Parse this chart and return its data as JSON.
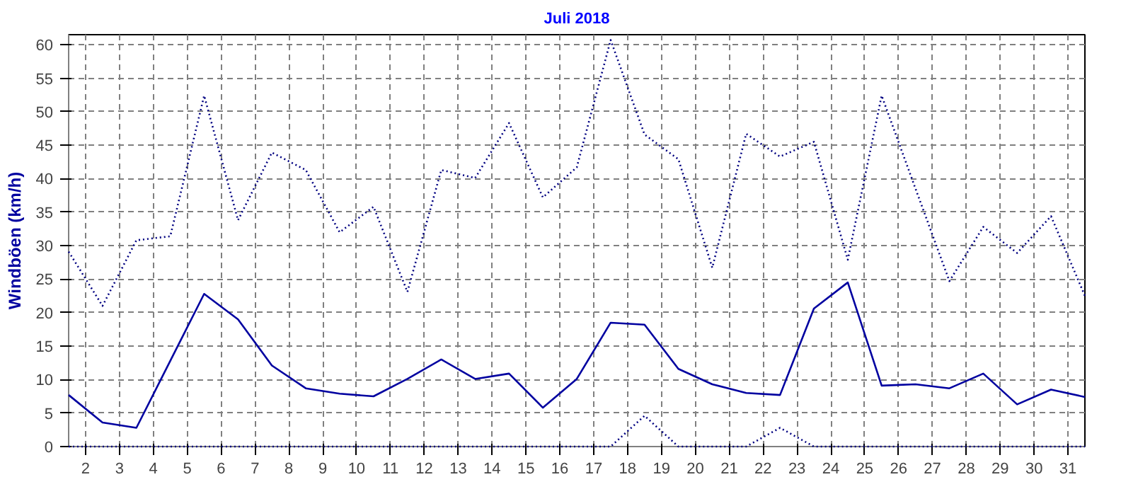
{
  "chart_data": {
    "type": "line",
    "title": "Juli 2018",
    "ylabel": "Windböen (km/h)",
    "x": [
      1.5,
      2.5,
      3.5,
      4.5,
      5.5,
      6.5,
      7.5,
      8.5,
      9.5,
      10.5,
      11.5,
      12.5,
      13.5,
      14.5,
      15.5,
      16.5,
      17.5,
      18.5,
      19.5,
      20.5,
      21.5,
      22.5,
      23.5,
      24.5,
      25.5,
      26.5,
      27.5,
      28.5,
      29.5,
      30.5,
      31.5
    ],
    "series": [
      {
        "color": "#000080",
        "line_style": "dotted",
        "values": [
          29.1,
          21.0,
          30.8,
          31.4,
          52.4,
          33.8,
          43.9,
          41.3,
          32.0,
          35.8,
          23.1,
          41.3,
          40.1,
          48.3,
          37.2,
          41.7,
          60.7,
          46.6,
          42.9,
          26.7,
          46.7,
          43.3,
          45.5,
          27.9,
          52.4,
          38.5,
          24.7,
          32.8,
          28.9,
          34.4,
          22.5
        ]
      },
      {
        "color": "#0000a0",
        "line_style": "solid",
        "values": [
          7.7,
          3.6,
          2.8,
          12.8,
          22.8,
          19.0,
          12.1,
          8.7,
          7.9,
          7.5,
          10.1,
          13.0,
          10.1,
          10.9,
          5.8,
          10.1,
          18.5,
          18.2,
          11.6,
          9.3,
          8.0,
          7.7,
          20.6,
          24.5,
          9.1,
          9.3,
          8.7,
          10.9,
          6.3,
          8.5,
          7.4
        ]
      },
      {
        "color": "#000080",
        "line_style": "dotted",
        "values": [
          0,
          0,
          0,
          0,
          0,
          0,
          0,
          0,
          0,
          0,
          0,
          0,
          0,
          0,
          0,
          0,
          0,
          4.6,
          0,
          0,
          0,
          2.8,
          0,
          0,
          0,
          0,
          0,
          0,
          0,
          0,
          0
        ]
      }
    ],
    "xlim": [
      1.5,
      31.5
    ],
    "xticks": [
      2,
      3,
      4,
      5,
      6,
      7,
      8,
      9,
      10,
      11,
      12,
      13,
      14,
      15,
      16,
      17,
      18,
      19,
      20,
      21,
      22,
      23,
      24,
      25,
      26,
      27,
      28,
      29,
      30,
      31
    ],
    "ylim": [
      0,
      61.5
    ],
    "yticks": [
      0,
      5,
      10,
      15,
      20,
      25,
      30,
      35,
      40,
      45,
      50,
      55,
      60
    ],
    "grid": true
  }
}
